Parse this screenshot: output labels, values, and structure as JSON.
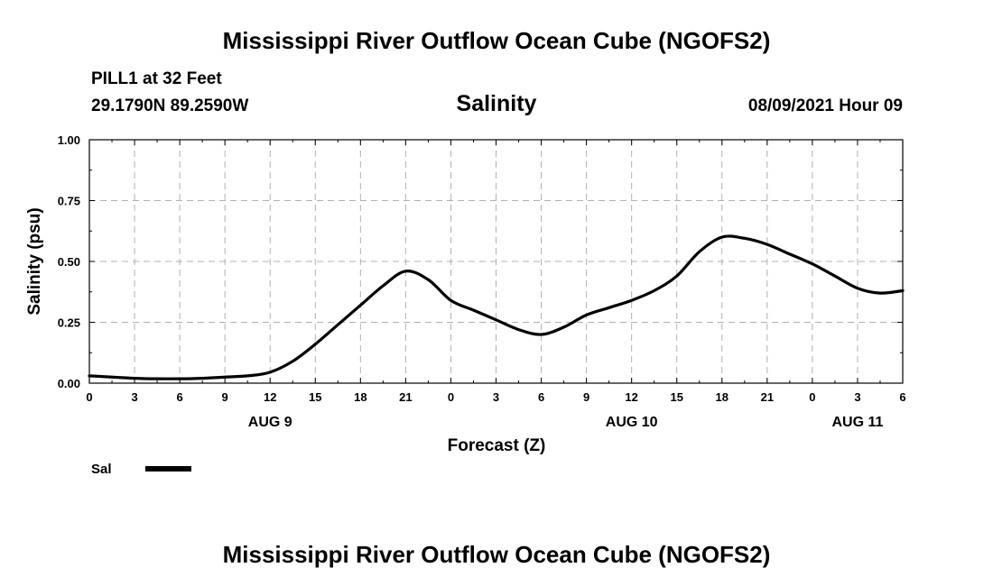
{
  "header": {
    "title": "Mississippi River Outflow Ocean Cube (NGOFS2)",
    "station": "PILL1 at 32 Feet",
    "coords": "29.1790N  89.2590W",
    "subtitle": "Salinity",
    "datetime": "08/09/2021 Hour 09"
  },
  "footer": {
    "title": "Mississippi River Outflow Ocean Cube (NGOFS2)"
  },
  "chart_data": {
    "type": "line",
    "title": "Salinity",
    "xlabel": "Forecast (Z)",
    "ylabel": "Salinity (psu)",
    "xlim": [
      0,
      54
    ],
    "ylim": [
      0,
      1.0
    ],
    "grid": true,
    "x_ticks": [
      0,
      3,
      6,
      9,
      12,
      15,
      18,
      21,
      24,
      27,
      30,
      33,
      36,
      39,
      42,
      45,
      48,
      51,
      54
    ],
    "x_tick_labels": [
      "0",
      "3",
      "6",
      "9",
      "12",
      "15",
      "18",
      "21",
      "0",
      "3",
      "6",
      "9",
      "12",
      "15",
      "18",
      "21",
      "0",
      "3",
      "6"
    ],
    "y_ticks": [
      0,
      0.25,
      0.5,
      0.75,
      1.0
    ],
    "y_tick_labels": [
      "0.00",
      "0.25",
      "0.50",
      "0.75",
      "1.00"
    ],
    "day_labels": [
      {
        "x": 12,
        "label": "AUG 9"
      },
      {
        "x": 36,
        "label": "AUG 10"
      },
      {
        "x": 51,
        "label": "AUG 11"
      }
    ],
    "series": [
      {
        "name": "Sal",
        "color": "#000000",
        "x": [
          0,
          1.5,
          3,
          4.5,
          6,
          7.5,
          9,
          10.5,
          12,
          13.5,
          15,
          16.5,
          18,
          19.5,
          21,
          22.5,
          24,
          25.5,
          27,
          28.5,
          30,
          31.5,
          33,
          34.5,
          36,
          37.5,
          39,
          40.5,
          42,
          43.5,
          45,
          46.5,
          48,
          49.5,
          51,
          52.5,
          54
        ],
        "values": [
          0.03,
          0.025,
          0.02,
          0.018,
          0.018,
          0.02,
          0.025,
          0.03,
          0.045,
          0.09,
          0.16,
          0.24,
          0.32,
          0.4,
          0.46,
          0.425,
          0.34,
          0.3,
          0.26,
          0.22,
          0.2,
          0.23,
          0.28,
          0.31,
          0.34,
          0.38,
          0.44,
          0.54,
          0.6,
          0.595,
          0.57,
          0.53,
          0.49,
          0.44,
          0.39,
          0.37,
          0.38
        ]
      }
    ],
    "legend": [
      {
        "label": "Sal",
        "color": "#000000"
      }
    ],
    "legend_position": "bottom-left"
  }
}
